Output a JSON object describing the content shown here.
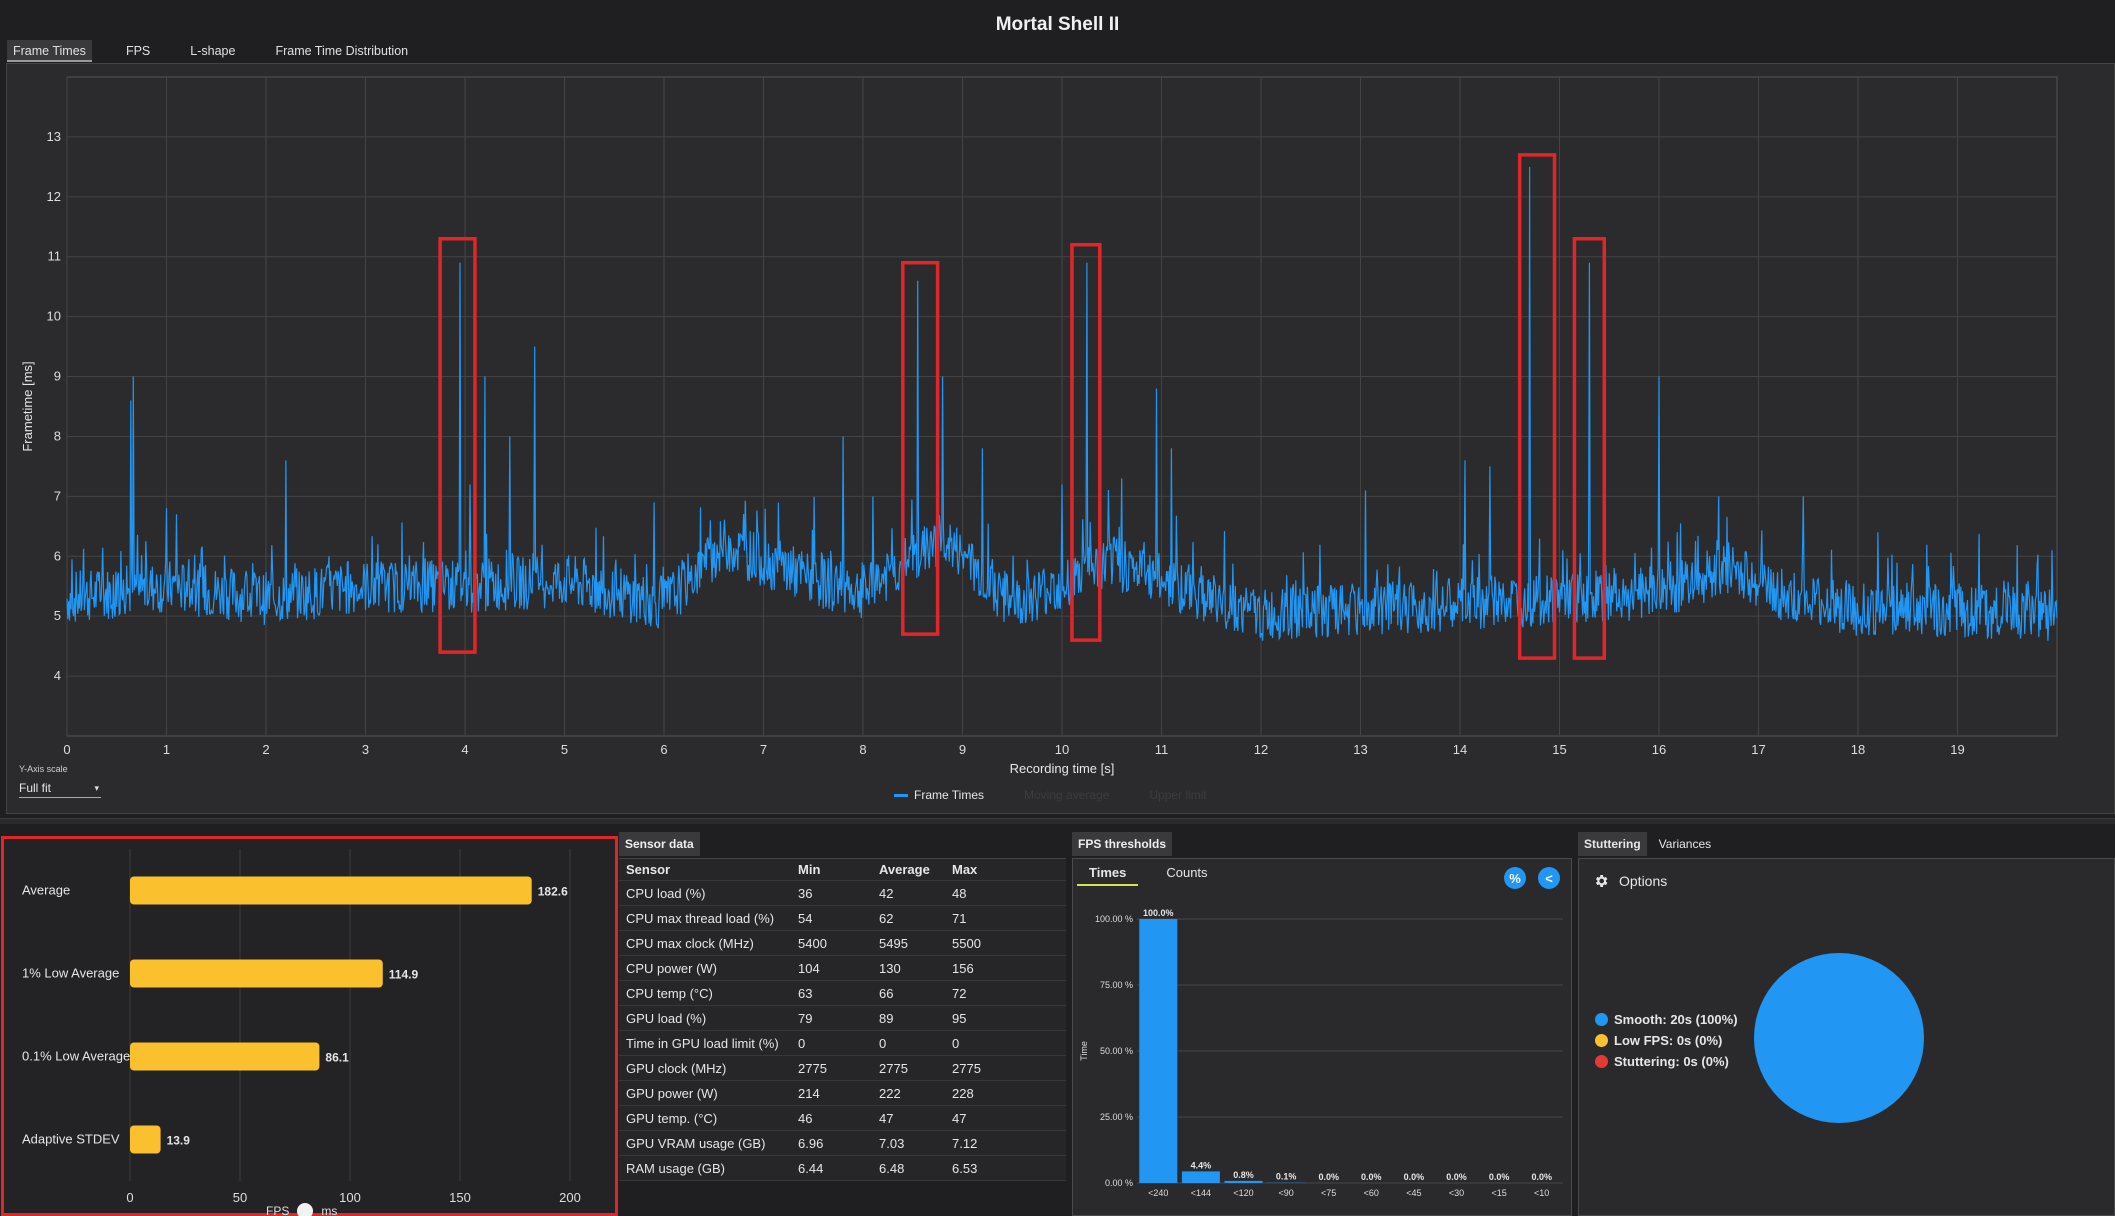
{
  "app": {
    "title": "Mortal Shell II"
  },
  "tabs": [
    "Frame Times",
    "FPS",
    "L-shape",
    "Frame Time Distribution"
  ],
  "colors": {
    "series": "#2196f3",
    "bar": "#fbc02d",
    "highlight": "#e0262b",
    "smooth": "#2196f3",
    "low_fps": "#fbc02d",
    "stuttering": "#e53935"
  },
  "yscale": {
    "label": "Y-Axis scale",
    "value": "Full fit"
  },
  "legend": {
    "items": [
      "Frame Times",
      "Moving average",
      "Upper limit"
    ]
  },
  "chart_data": [
    {
      "type": "line",
      "ylabel": "Frametime [ms]",
      "xlabel": "Recording time [s]",
      "xlim": [
        0,
        20
      ],
      "ylim": [
        3.0,
        14.0
      ],
      "yticks": [
        4,
        5,
        6,
        7,
        8,
        9,
        10,
        11,
        12,
        13
      ],
      "xticks": [
        0,
        1,
        2,
        3,
        4,
        5,
        6,
        7,
        8,
        9,
        10,
        11,
        12,
        13,
        14,
        15,
        16,
        17,
        18,
        19
      ],
      "grid": true,
      "series": [
        {
          "name": "Frame Times",
          "baseline": [
            [
              0,
              5.3
            ],
            [
              1,
              5.5
            ],
            [
              2,
              5.3
            ],
            [
              3,
              5.5
            ],
            [
              4,
              5.5
            ],
            [
              5,
              5.6
            ],
            [
              6,
              5.2
            ],
            [
              6.6,
              6.2
            ],
            [
              7.5,
              5.6
            ],
            [
              8,
              5.4
            ],
            [
              8.8,
              6.3
            ],
            [
              9.5,
              5.2
            ],
            [
              10.5,
              5.9
            ],
            [
              11,
              5.6
            ],
            [
              12,
              5.0
            ],
            [
              13,
              5.1
            ],
            [
              14,
              5.2
            ],
            [
              15,
              5.3
            ],
            [
              16,
              5.4
            ],
            [
              16.7,
              5.8
            ],
            [
              17.3,
              5.3
            ],
            [
              18,
              5.1
            ],
            [
              19,
              5.1
            ],
            [
              20,
              5.0
            ]
          ],
          "spikes": [
            [
              0.64,
              8.6
            ],
            [
              0.67,
              9.0
            ],
            [
              1.0,
              6.8
            ],
            [
              1.1,
              6.7
            ],
            [
              2.2,
              7.6
            ],
            [
              3.95,
              10.9
            ],
            [
              4.05,
              7.2
            ],
            [
              4.2,
              9.0
            ],
            [
              4.45,
              8.0
            ],
            [
              4.7,
              9.5
            ],
            [
              5.9,
              6.9
            ],
            [
              7.8,
              8.0
            ],
            [
              8.1,
              7.0
            ],
            [
              8.55,
              10.6
            ],
            [
              8.8,
              9.0
            ],
            [
              9.2,
              7.8
            ],
            [
              10.0,
              7.2
            ],
            [
              10.25,
              10.9
            ],
            [
              10.6,
              7.3
            ],
            [
              10.95,
              8.8
            ],
            [
              11.1,
              7.8
            ],
            [
              13.05,
              7.1
            ],
            [
              14.05,
              7.6
            ],
            [
              14.3,
              7.5
            ],
            [
              14.7,
              12.5
            ],
            [
              15.3,
              10.9
            ],
            [
              15.45,
              7.5
            ],
            [
              16.0,
              9.0
            ],
            [
              16.6,
              7.0
            ],
            [
              17.45,
              7.0
            ],
            [
              18.2,
              6.4
            ],
            [
              19.95,
              6.1
            ]
          ]
        }
      ],
      "annotations": [
        [
          3.75,
          4.4,
          4.1,
          11.3
        ],
        [
          8.4,
          4.7,
          8.75,
          10.9
        ],
        [
          10.1,
          4.6,
          10.38,
          11.2
        ],
        [
          14.6,
          4.3,
          14.95,
          12.7
        ],
        [
          15.15,
          4.3,
          15.45,
          11.3
        ]
      ]
    },
    {
      "type": "bar",
      "categories": [
        "Average",
        "1% Low Average",
        "0.1% Low Average",
        "Adaptive STDEV"
      ],
      "values": [
        182.6,
        114.9,
        86.1,
        13.9
      ],
      "xlim": [
        0,
        200
      ],
      "xticks": [
        0,
        50,
        100,
        150,
        200
      ]
    },
    {
      "type": "bar",
      "ylabel": "Time",
      "categories": [
        "<240",
        "<144",
        "<120",
        "<90",
        "<75",
        "<60",
        "<45",
        "<30",
        "<15",
        "<10"
      ],
      "values": [
        100.0,
        4.4,
        0.8,
        0.1,
        0.0,
        0.0,
        0.0,
        0.0,
        0.0,
        0.0
      ],
      "value_labels": [
        "100.0%",
        "4.4%",
        "0.8%",
        "0.1%",
        "0.0%",
        "0.0%",
        "0.0%",
        "0.0%",
        "0.0%",
        "0.0%"
      ],
      "ylim": [
        0,
        100
      ],
      "yticks": [
        "0.00 %",
        "25.00 %",
        "50.00 %",
        "75.00 %",
        "100.00 %"
      ]
    },
    {
      "type": "pie",
      "categories": [
        "Smooth",
        "Low FPS",
        "Stuttering"
      ],
      "values": [
        100,
        0,
        0
      ]
    }
  ],
  "toggle": {
    "left": "FPS",
    "right": "ms"
  },
  "sensor": {
    "tab": "Sensor data",
    "headers": [
      "Sensor",
      "Min",
      "Average",
      "Max"
    ],
    "rows": [
      [
        "CPU load (%)",
        "36",
        "42",
        "48"
      ],
      [
        "CPU max thread load (%)",
        "54",
        "62",
        "71"
      ],
      [
        "CPU max clock (MHz)",
        "5400",
        "5495",
        "5500"
      ],
      [
        "CPU power (W)",
        "104",
        "130",
        "156"
      ],
      [
        "CPU temp (°C)",
        "63",
        "66",
        "72"
      ],
      [
        "GPU load (%)",
        "79",
        "89",
        "95"
      ],
      [
        "Time in GPU load limit (%)",
        "0",
        "0",
        "0"
      ],
      [
        "GPU clock (MHz)",
        "2775",
        "2775",
        "2775"
      ],
      [
        "GPU power (W)",
        "214",
        "222",
        "228"
      ],
      [
        "GPU temp. (°C)",
        "46",
        "47",
        "47"
      ],
      [
        "GPU VRAM usage (GB)",
        "6.96",
        "7.03",
        "7.12"
      ],
      [
        "RAM usage (GB)",
        "6.44",
        "6.48",
        "6.53"
      ]
    ]
  },
  "fps_thresholds": {
    "tab": "FPS thresholds",
    "subtabs": [
      "Times",
      "Counts"
    ],
    "percent_btn": "%",
    "share_btn": "<"
  },
  "stuttering": {
    "tabs": [
      "Stuttering",
      "Variances"
    ],
    "options_label": "Options",
    "legend": [
      "Smooth:  20s (100%)",
      "Low FPS:  0s (0%)",
      "Stuttering:  0s (0%)"
    ]
  }
}
